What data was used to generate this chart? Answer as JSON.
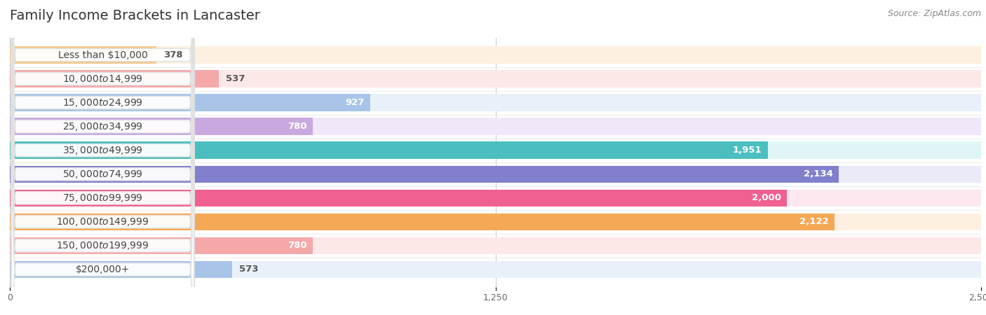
{
  "title": "Family Income Brackets in Lancaster",
  "source": "Source: ZipAtlas.com",
  "categories": [
    "Less than $10,000",
    "$10,000 to $14,999",
    "$15,000 to $24,999",
    "$25,000 to $34,999",
    "$35,000 to $49,999",
    "$50,000 to $74,999",
    "$75,000 to $99,999",
    "$100,000 to $149,999",
    "$150,000 to $199,999",
    "$200,000+"
  ],
  "values": [
    378,
    537,
    927,
    780,
    1951,
    2134,
    2000,
    2122,
    780,
    573
  ],
  "bar_colors": [
    "#f5c98a",
    "#f4a9a8",
    "#a8c4e8",
    "#c9a8e0",
    "#4bbfbf",
    "#8080cc",
    "#f06090",
    "#f5a855",
    "#f4a9a8",
    "#a8c4e8"
  ],
  "bar_bg_colors": [
    "#fdf0e0",
    "#fde8e8",
    "#e8f0fa",
    "#f0e8f8",
    "#e0f5f5",
    "#eaeaf8",
    "#fde8f0",
    "#fef0e0",
    "#fde8e8",
    "#e8f0fa"
  ],
  "xlim": [
    0,
    2500
  ],
  "xticks": [
    0,
    1250,
    2500
  ],
  "background_color": "#ffffff",
  "title_fontsize": 14,
  "label_fontsize": 10,
  "value_fontsize": 9.5,
  "tick_fontsize": 9,
  "source_fontsize": 9
}
